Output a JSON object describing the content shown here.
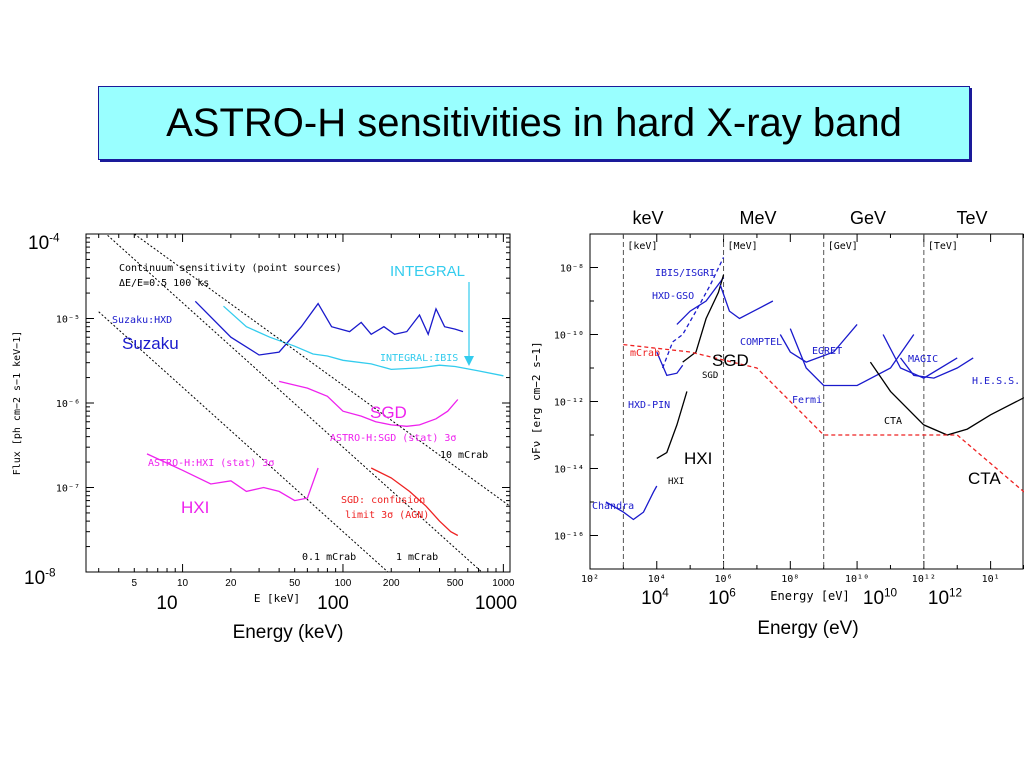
{
  "title": "ASTRO-H sensitivities in hard X-ray band",
  "colors": {
    "title_bg": "#99ffff",
    "title_border": "#1a1a9a",
    "blue": "#1a1acc",
    "cyan": "#33ccee",
    "magenta": "#ee22ee",
    "red": "#ee2222",
    "black": "#000000"
  },
  "chart_data": [
    {
      "type": "line",
      "xlabel": "E [keV]",
      "ylabel": "Flux [ph cm−2 s−1 keV−1]",
      "x_scale": "log",
      "y_scale": "log",
      "xlim": [
        2.5,
        1100
      ],
      "ylim": [
        1e-08,
        0.0001
      ],
      "x_ticks": [
        "5",
        "10",
        "20",
        "50",
        "100",
        "200",
        "500",
        "1000"
      ],
      "y_ticks": [
        "10⁻⁵",
        "10⁻⁶",
        "10⁻⁷"
      ],
      "y_outer_labels": {
        "top_base": "10",
        "top_exp": "-4",
        "bottom_base": "10",
        "bottom_exp": "-8"
      },
      "x_outer_labels": [
        "10",
        "100",
        "1000"
      ],
      "x_outer_title": "Energy (keV)",
      "header_lines": [
        "Continuum sensitivity (point sources)",
        "ΔE/E=0.5  100 ks"
      ],
      "labels": {
        "suzaku_small": "Suzaku:HXD",
        "suzaku_big": "Suzaku",
        "integral_big": "INTEGRAL",
        "integral_small": "INTEGRAL:IBIS",
        "sgd_big": "SGD",
        "sgd_small": "ASTRO-H:SGD (stat) 3σ",
        "hxi_small": "ASTRO-H:HXI (stat) 3σ",
        "hxi_big": "HXI",
        "sgd_conf_1": "SGD: confusion",
        "sgd_conf_2": "limit 3σ (AGN)",
        "crab10": "10 mCrab",
        "crab01": "0.1 mCrab",
        "crab1": "1 mCrab"
      },
      "series": [
        {
          "name": "Suzaku:HXD",
          "color": "#1a1acc",
          "points": [
            [
              12,
              1.6e-05
            ],
            [
              20,
              6e-06
            ],
            [
              30,
              3.7e-06
            ],
            [
              40,
              4e-06
            ],
            [
              55,
              8e-06
            ],
            [
              70,
              1.5e-05
            ],
            [
              85,
              8e-06
            ],
            [
              110,
              7e-06
            ],
            [
              130,
              9e-06
            ],
            [
              150,
              6.5e-06
            ],
            [
              180,
              8e-06
            ],
            [
              210,
              6.5e-06
            ],
            [
              250,
              7e-06
            ],
            [
              300,
              1.1e-05
            ],
            [
              340,
              6.5e-06
            ],
            [
              380,
              1.3e-05
            ],
            [
              430,
              8e-06
            ],
            [
              500,
              7.5e-06
            ],
            [
              560,
              7e-06
            ]
          ]
        },
        {
          "name": "INTEGRAL:IBIS",
          "color": "#33ccee",
          "points": [
            [
              18,
              1.4e-05
            ],
            [
              25,
              8e-06
            ],
            [
              35,
              6e-06
            ],
            [
              50,
              4.7e-06
            ],
            [
              65,
              3.8e-06
            ],
            [
              80,
              3.6e-06
            ],
            [
              100,
              3.2e-06
            ],
            [
              150,
              2.9e-06
            ],
            [
              200,
              2.5e-06
            ],
            [
              300,
              2.6e-06
            ],
            [
              400,
              2.8e-06
            ],
            [
              500,
              2.7e-06
            ],
            [
              700,
              2.4e-06
            ],
            [
              1000,
              2.1e-06
            ]
          ]
        },
        {
          "name": "ASTRO-H:SGD (stat) 3σ",
          "color": "#ee22ee",
          "points": [
            [
              40,
              1.8e-06
            ],
            [
              60,
              1.5e-06
            ],
            [
              80,
              1.2e-06
            ],
            [
              100,
              8e-07
            ],
            [
              130,
              7e-07
            ],
            [
              160,
              6e-07
            ],
            [
              200,
              5.5e-07
            ],
            [
              250,
              5.3e-07
            ],
            [
              300,
              5.5e-07
            ],
            [
              380,
              6.5e-07
            ],
            [
              450,
              8e-07
            ],
            [
              520,
              1.1e-06
            ]
          ]
        },
        {
          "name": "ASTRO-H:HXI (stat) 3σ",
          "color": "#ee22ee",
          "points": [
            [
              6,
              2.5e-07
            ],
            [
              10,
              1.6e-07
            ],
            [
              15,
              1.1e-07
            ],
            [
              20,
              1.2e-07
            ],
            [
              25,
              9e-08
            ],
            [
              32,
              1e-07
            ],
            [
              40,
              9e-08
            ],
            [
              50,
              7e-08
            ],
            [
              60,
              7.5e-08
            ],
            [
              70,
              1.7e-07
            ]
          ]
        },
        {
          "name": "SGD: confusion limit 3σ (AGN)",
          "color": "#ee2222",
          "points": [
            [
              150,
              1.7e-07
            ],
            [
              200,
              1.3e-07
            ],
            [
              260,
              9e-08
            ],
            [
              330,
              6e-08
            ],
            [
              400,
              4e-08
            ],
            [
              470,
              3e-08
            ],
            [
              520,
              2.7e-08
            ]
          ]
        },
        {
          "name": "10 mCrab",
          "color": "#000000",
          "dashed": true,
          "points": [
            [
              5,
              0.0001
            ],
            [
              1100,
              6e-08
            ]
          ]
        },
        {
          "name": "1 mCrab",
          "color": "#000000",
          "dashed": true,
          "points": [
            [
              3,
              0.00012
            ],
            [
              1100,
              5e-09
            ]
          ]
        },
        {
          "name": "0.1 mCrab",
          "color": "#000000",
          "dashed": true,
          "points": [
            [
              3,
              1.2e-05
            ],
            [
              1100,
              5e-10
            ]
          ]
        }
      ]
    },
    {
      "type": "line",
      "xlabel": "Energy [eV]",
      "ylabel": "νFν [erg cm−2 s−1]",
      "x_scale": "log",
      "y_scale": "log",
      "xlim": [
        100.0,
        1000000000000000.0
      ],
      "ylim": [
        1e-17,
        1e-07
      ],
      "x_tick_labels": [
        "10²",
        "10⁴",
        "10⁶",
        "10⁸",
        "10¹⁰",
        "10¹²",
        "10¹"
      ],
      "y_tick_labels": [
        "10⁻⁸",
        "10⁻¹⁰",
        "10⁻¹²",
        "10⁻¹⁴",
        "10⁻¹⁶"
      ],
      "x_outer_labels": [
        {
          "base": "10",
          "exp": "4"
        },
        {
          "base": "10",
          "exp": "6"
        },
        {
          "base": "10",
          "exp": "10"
        },
        {
          "base": "10",
          "exp": "12"
        }
      ],
      "x_outer_title": "Energy (eV)",
      "band_labels": [
        "keV",
        "MeV",
        "GeV",
        "TeV"
      ],
      "band_tags": [
        "[keV]",
        "[MeV]",
        "[GeV]",
        "[TeV]"
      ],
      "band_lines_ev": [
        1000.0,
        1000000.0,
        1000000000.0,
        1000000000000.0
      ],
      "labels": {
        "ibis": "IBIS/ISGRI",
        "hxdgso": "HXD-GSO",
        "mcrab": "mCrab",
        "sgd_small": "SGD",
        "sgd_big": "SGD",
        "hxdpin": "HXD-PIN",
        "hxi_big": "HXI",
        "hxi_small": "HXI",
        "chandra": "Chandra",
        "comptel": "COMPTEL",
        "egret": "EGRET",
        "fermi": "Fermi",
        "magic": "MAGIC",
        "hess": "H.E.S.S.",
        "cta_small": "CTA",
        "cta_big": "CTA"
      },
      "series": [
        {
          "name": "Chandra",
          "color": "#1a1acc",
          "points": [
            [
              300.0,
              1e-15
            ],
            [
              1000.0,
              5e-16
            ],
            [
              2000.0,
              3e-16
            ],
            [
              4000.0,
              5e-16
            ],
            [
              8000.0,
              2e-15
            ],
            [
              10000.0,
              3e-15
            ]
          ]
        },
        {
          "name": "HXI",
          "color": "#000000",
          "points": [
            [
              10000.0,
              2e-14
            ],
            [
              20000.0,
              3e-14
            ],
            [
              40000.0,
              2e-13
            ],
            [
              80000.0,
              2e-12
            ]
          ]
        },
        {
          "name": "HXD-PIN",
          "color": "#1a1acc",
          "points": [
            [
              10000.0,
              3e-11
            ],
            [
              20000.0,
              6e-12
            ],
            [
              40000.0,
              7e-12
            ],
            [
              60000.0,
              1.2e-11
            ]
          ]
        },
        {
          "name": "IBIS/ISGRI",
          "color": "#1a1acc",
          "dashed": true,
          "points": [
            [
              15000.0,
              1e-11
            ],
            [
              30000.0,
              6e-11
            ],
            [
              60000.0,
              1e-10
            ],
            [
              150000.0,
              5e-10
            ],
            [
              400000.0,
              3e-09
            ],
            [
              1000000.0,
              2e-08
            ]
          ]
        },
        {
          "name": "HXD-GSO",
          "color": "#1a1acc",
          "points": [
            [
              40000.0,
              2e-10
            ],
            [
              100000.0,
              5e-10
            ],
            [
              300000.0,
              1e-09
            ],
            [
              1000000.0,
              5e-09
            ]
          ]
        },
        {
          "name": "SGD",
          "color": "#000000",
          "points": [
            [
              60000.0,
              1.5e-11
            ],
            [
              150000.0,
              3e-11
            ],
            [
              300000.0,
              3e-10
            ],
            [
              700000.0,
              1.8e-09
            ],
            [
              1000000.0,
              6e-09
            ]
          ]
        },
        {
          "name": "COMPTEL",
          "color": "#1a1acc",
          "points": [
            [
              800000.0,
              3e-09
            ],
            [
              1500000.0,
              5e-10
            ],
            [
              3000000.0,
              3e-10
            ],
            [
              8000000.0,
              5e-10
            ],
            [
              30000000.0,
              1e-09
            ]
          ]
        },
        {
          "name": "EGRET",
          "color": "#1a1acc",
          "points": [
            [
              50000000.0,
              1e-10
            ],
            [
              100000000.0,
              3e-11
            ],
            [
              300000000.0,
              1.5e-11
            ],
            [
              2000000000.0,
              3e-11
            ],
            [
              10000000000.0,
              2e-10
            ]
          ]
        },
        {
          "name": "Fermi",
          "color": "#1a1acc",
          "points": [
            [
              100000000.0,
              1.5e-10
            ],
            [
              300000000.0,
              1e-11
            ],
            [
              1000000000.0,
              3e-12
            ],
            [
              10000000000.0,
              3e-12
            ],
            [
              100000000000.0,
              1e-11
            ],
            [
              500000000000.0,
              1e-10
            ]
          ]
        },
        {
          "name": "MAGIC",
          "color": "#1a1acc",
          "points": [
            [
              60000000000.0,
              1e-10
            ],
            [
              200000000000.0,
              1e-11
            ],
            [
              1000000000000.0,
              5e-12
            ],
            [
              10000000000000.0,
              2e-11
            ]
          ]
        },
        {
          "name": "H.E.S.S.",
          "color": "#1a1acc",
          "points": [
            [
              200000000000.0,
              2e-11
            ],
            [
              500000000000.0,
              6e-12
            ],
            [
              2000000000000.0,
              5e-12
            ],
            [
              10000000000000.0,
              1e-11
            ],
            [
              30000000000000.0,
              2e-11
            ]
          ]
        },
        {
          "name": "CTA",
          "color": "#000000",
          "points": [
            [
              25000000000.0,
              1.5e-11
            ],
            [
              100000000000.0,
              2e-12
            ],
            [
              1000000000000.0,
              2e-13
            ],
            [
              5000000000000.0,
              1e-13
            ],
            [
              20000000000000.0,
              1.5e-13
            ],
            [
              100000000000000.0,
              4e-13
            ],
            [
              1000000000000000.0,
              1.3e-12
            ]
          ]
        },
        {
          "name": "mCrab",
          "color": "#ee2222",
          "dashed": true,
          "points": [
            [
              1000.0,
              5e-11
            ],
            [
              100000.0,
              3e-11
            ],
            [
              10000000.0,
              1e-11
            ],
            [
              1000000000.0,
              1e-13
            ],
            [
              10000000000000.0,
              1e-13
            ],
            [
              1000000000000000.0,
              2e-15
            ]
          ]
        }
      ]
    }
  ]
}
